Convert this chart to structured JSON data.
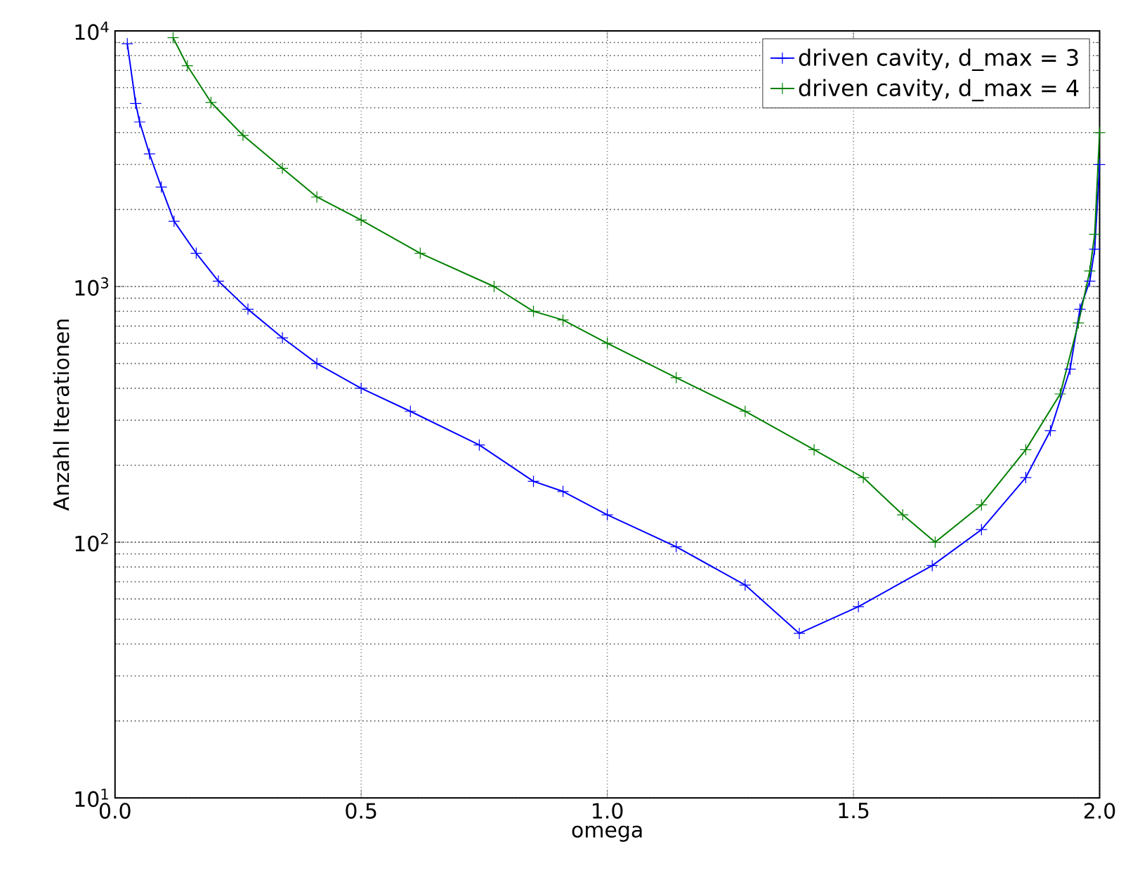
{
  "chart_data": {
    "type": "line",
    "xlabel": "omega",
    "ylabel": "Anzahl Iterationen",
    "log": "y",
    "grid": true,
    "legend": "top right",
    "marker": "cross",
    "line_style": "solid",
    "xlim": [
      0.0,
      2.0
    ],
    "xticks": [
      {
        "value": 0.0,
        "label": "0.0"
      },
      {
        "value": 0.5,
        "label": "0.5"
      },
      {
        "value": 1.0,
        "label": "1.0"
      },
      {
        "value": 1.5,
        "label": "1.5"
      },
      {
        "value": 2.0,
        "label": "2.0"
      }
    ],
    "ylim": [
      10,
      10000
    ],
    "yticks": [
      {
        "value": 10,
        "label": "10$^{1}$"
      },
      {
        "value": 100,
        "label": "10$^{2}$"
      },
      {
        "value": 1000,
        "label": "10$^{3}$"
      },
      {
        "value": 10000,
        "label": "10$^{4}$"
      }
    ],
    "series": [
      {
        "name": "driven cavity, d_max = 3",
        "color": "#0000ff",
        "x": [
          0.025,
          0.042,
          0.05,
          0.07,
          0.094,
          0.12,
          0.165,
          0.21,
          0.27,
          0.34,
          0.41,
          0.5,
          0.6,
          0.74,
          0.85,
          0.91,
          1.0,
          1.14,
          1.28,
          1.39,
          1.51,
          1.66,
          1.76,
          1.85,
          1.9,
          1.94,
          1.96,
          1.98,
          1.99,
          2.0
        ],
        "values": [
          8900,
          5200,
          4400,
          3300,
          2450,
          1800,
          1350,
          1050,
          815,
          630,
          500,
          400,
          325,
          240,
          173,
          158,
          128,
          96,
          68,
          44,
          56,
          81,
          112,
          179,
          273,
          475,
          815,
          1050,
          1400,
          3000
        ]
      },
      {
        "name": "driven cavity, d_max = 4",
        "color": "#008000",
        "x": [
          0.118,
          0.147,
          0.195,
          0.26,
          0.34,
          0.41,
          0.5,
          0.62,
          0.77,
          0.85,
          0.91,
          1.0,
          1.14,
          1.28,
          1.42,
          1.52,
          1.6,
          1.666,
          1.76,
          1.85,
          1.92,
          1.957,
          1.98,
          1.99,
          2.0
        ],
        "values": [
          9400,
          7300,
          5250,
          3900,
          2900,
          2240,
          1820,
          1350,
          1000,
          800,
          740,
          600,
          440,
          325,
          230,
          179,
          128,
          100,
          140,
          230,
          380,
          720,
          1150,
          1600,
          4000
        ]
      }
    ]
  }
}
